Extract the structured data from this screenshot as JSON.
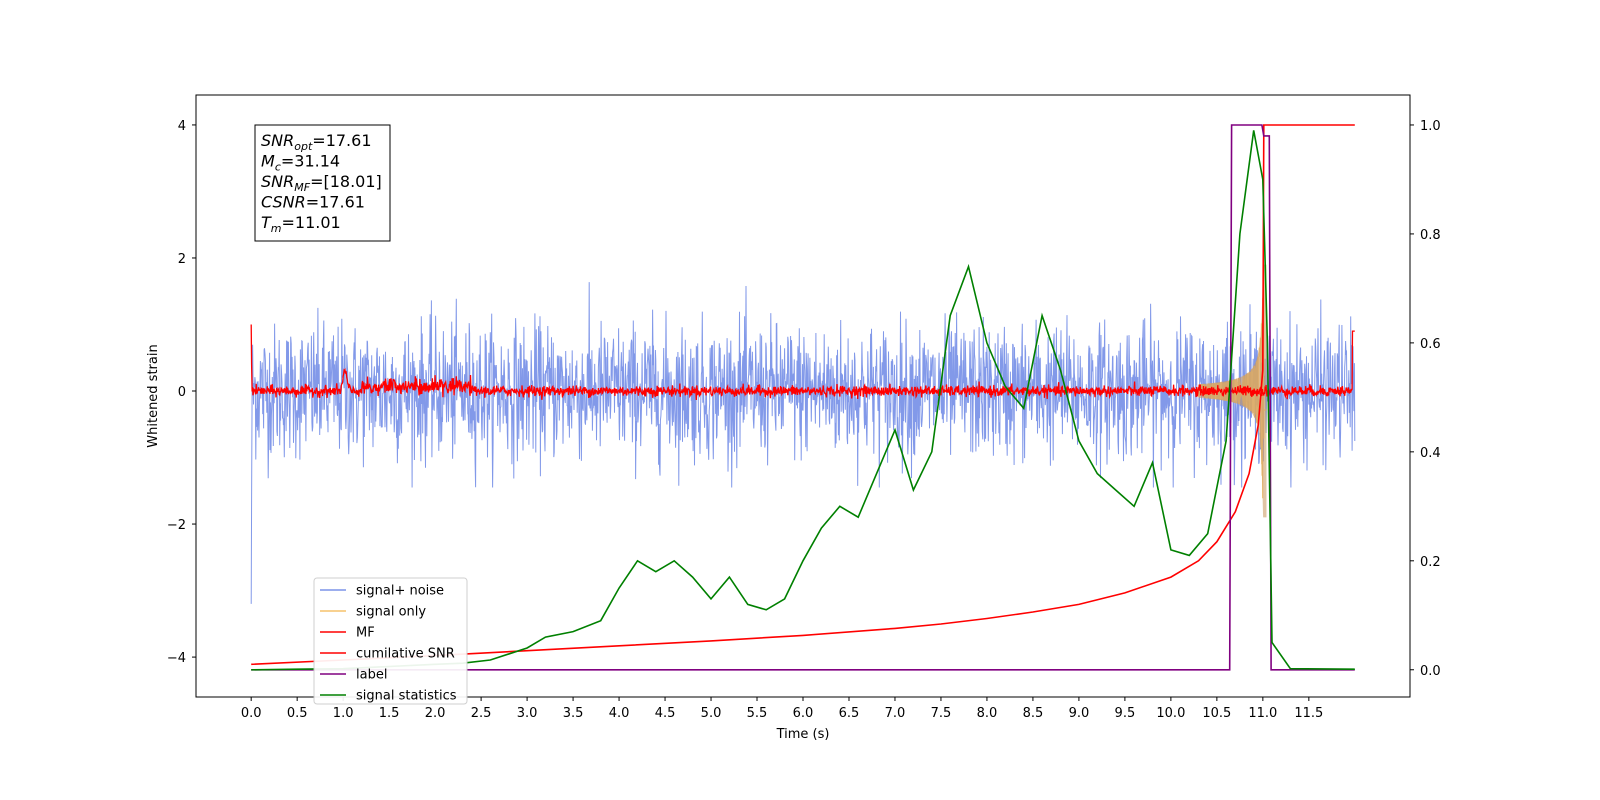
{
  "chart_data": {
    "type": "line",
    "title": "",
    "xlabel": "Time (s)",
    "ylabel_left": "Whitened strain",
    "ylabel_right": "",
    "xlim": [
      -0.6,
      12.6
    ],
    "ylim_left": [
      -4.6,
      4.45
    ],
    "ylim_right": [
      -0.05,
      1.055
    ],
    "x_ticks": [
      "0.0",
      "0.5",
      "1.0",
      "1.5",
      "2.0",
      "2.5",
      "3.0",
      "3.5",
      "4.0",
      "4.5",
      "5.0",
      "5.5",
      "6.0",
      "6.5",
      "7.0",
      "7.5",
      "8.0",
      "8.5",
      "9.0",
      "9.5",
      "10.0",
      "10.5",
      "11.0",
      "11.5"
    ],
    "y_ticks_left": [
      "4",
      "2",
      "0",
      "−2",
      "−4"
    ],
    "y_ticks_right": [
      "1.0",
      "0.8",
      "0.6",
      "0.4",
      "0.2",
      "0.0"
    ],
    "grid": false,
    "legend_position": "lower-left",
    "annotations": [
      {
        "base": "SNR",
        "sub": "opt",
        "value": "=17.61"
      },
      {
        "base": "M",
        "sub": "c",
        "value": "=31.14"
      },
      {
        "base": "SNR",
        "sub": "MF",
        "value": "=[18.01]"
      },
      {
        "base": "CSNR",
        "sub": "",
        "value": "=17.61"
      },
      {
        "base": "T",
        "sub": "m",
        "value": "=11.01"
      }
    ],
    "series": [
      {
        "name": "signal+ noise",
        "color": "#7b93e8",
        "axis": "left",
        "style": "noise band",
        "amplitude": 1.25,
        "x_range": [
          0.0,
          12.0
        ]
      },
      {
        "name": "signal only",
        "color": "#f5c26b",
        "axis": "left",
        "style": "chirp",
        "peak": 1.9,
        "merger_time": 11.01
      },
      {
        "name": "MF",
        "color": "#ff0000",
        "axis": "left",
        "style": "filter output",
        "x_range": [
          0.0,
          12.0
        ]
      },
      {
        "name": "cumilative SNR",
        "color": "#ff0000",
        "axis": "right",
        "x": [
          0.0,
          1.0,
          2.0,
          3.0,
          4.0,
          5.0,
          6.0,
          7.0,
          7.5,
          8.0,
          8.5,
          9.0,
          9.5,
          10.0,
          10.3,
          10.5,
          10.7,
          10.85,
          10.95,
          11.0,
          11.01,
          12.0
        ],
        "values": [
          0.01,
          0.018,
          0.026,
          0.035,
          0.044,
          0.053,
          0.063,
          0.076,
          0.084,
          0.094,
          0.106,
          0.12,
          0.141,
          0.17,
          0.2,
          0.235,
          0.29,
          0.36,
          0.45,
          0.55,
          1.0,
          1.0
        ]
      },
      {
        "name": "label",
        "color": "#800080",
        "axis": "right",
        "x": [
          0.0,
          10.64,
          10.66,
          10.99,
          11.01,
          11.07,
          11.09,
          12.0
        ],
        "values": [
          0.0,
          0.0,
          1.0,
          1.0,
          0.98,
          0.98,
          0.0,
          0.0
        ]
      },
      {
        "name": "signal statistics",
        "color": "#008000",
        "axis": "right",
        "x": [
          0.0,
          0.5,
          1.0,
          1.5,
          2.0,
          2.3,
          2.6,
          3.0,
          3.2,
          3.5,
          3.8,
          4.0,
          4.2,
          4.4,
          4.6,
          4.8,
          5.0,
          5.2,
          5.4,
          5.6,
          5.8,
          6.0,
          6.2,
          6.4,
          6.6,
          6.8,
          7.0,
          7.2,
          7.4,
          7.6,
          7.8,
          8.0,
          8.2,
          8.4,
          8.6,
          8.8,
          9.0,
          9.2,
          9.4,
          9.6,
          9.8,
          10.0,
          10.2,
          10.4,
          10.6,
          10.75,
          10.9,
          11.0,
          11.05,
          11.1,
          11.3,
          12.0
        ],
        "values": [
          0.0,
          0.001,
          0.002,
          0.006,
          0.01,
          0.012,
          0.018,
          0.04,
          0.06,
          0.07,
          0.09,
          0.15,
          0.2,
          0.18,
          0.2,
          0.17,
          0.13,
          0.17,
          0.12,
          0.11,
          0.13,
          0.2,
          0.26,
          0.3,
          0.28,
          0.36,
          0.44,
          0.33,
          0.4,
          0.65,
          0.74,
          0.6,
          0.52,
          0.48,
          0.65,
          0.55,
          0.42,
          0.36,
          0.33,
          0.3,
          0.38,
          0.22,
          0.21,
          0.25,
          0.42,
          0.8,
          0.99,
          0.9,
          0.6,
          0.05,
          0.002,
          0.001
        ]
      }
    ]
  }
}
